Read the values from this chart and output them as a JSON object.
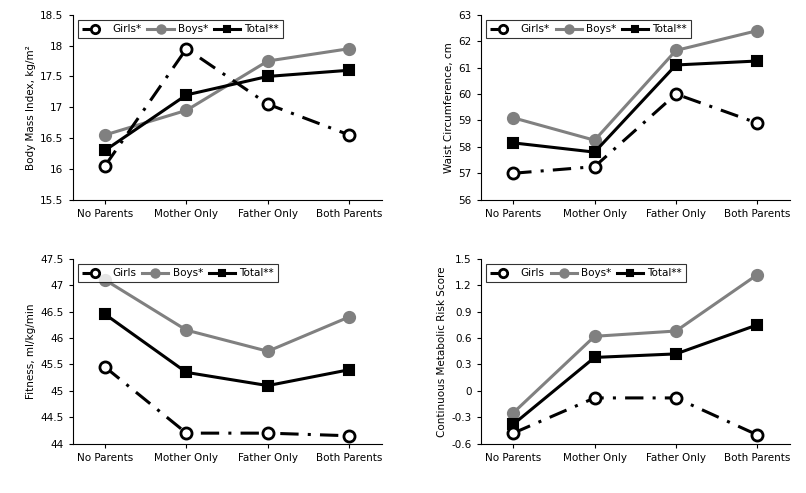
{
  "categories": [
    "No Parents",
    "Mother Only",
    "Father Only",
    "Both Parents"
  ],
  "bmi": {
    "girls": [
      16.05,
      17.95,
      17.05,
      16.55
    ],
    "boys": [
      16.55,
      16.95,
      17.75,
      17.95
    ],
    "total": [
      16.3,
      17.2,
      17.5,
      17.6
    ]
  },
  "waist": {
    "girls": [
      57.0,
      57.25,
      60.0,
      58.9
    ],
    "boys": [
      59.1,
      58.25,
      61.65,
      62.4
    ],
    "total": [
      58.15,
      57.8,
      61.1,
      61.25
    ]
  },
  "fitness": {
    "girls": [
      45.45,
      44.2,
      44.2,
      44.15
    ],
    "boys": [
      47.1,
      46.15,
      45.75,
      46.4
    ],
    "total": [
      46.45,
      45.35,
      45.1,
      45.4
    ]
  },
  "metabolic": {
    "girls": [
      -0.48,
      -0.08,
      -0.08,
      -0.5
    ],
    "boys": [
      -0.25,
      0.62,
      0.68,
      1.32
    ],
    "total": [
      -0.38,
      0.38,
      0.42,
      0.75
    ]
  },
  "bmi_ylim": [
    15.5,
    18.5
  ],
  "waist_ylim": [
    56,
    63
  ],
  "fitness_ylim": [
    44,
    47.5
  ],
  "metabolic_ylim": [
    -0.6,
    1.5
  ],
  "bmi_yticks": [
    15.5,
    16.0,
    16.5,
    17.0,
    17.5,
    18.0,
    18.5
  ],
  "waist_yticks": [
    56,
    57,
    58,
    59,
    60,
    61,
    62,
    63
  ],
  "fitness_yticks": [
    44,
    44.5,
    45.0,
    45.5,
    46.0,
    46.5,
    47.0,
    47.5
  ],
  "metabolic_yticks": [
    -0.6,
    -0.3,
    0.0,
    0.3,
    0.6,
    0.9,
    1.2,
    1.5
  ],
  "ylabel_bmi": "Body Mass Index, kg/m²",
  "ylabel_waist": "Waist Circumference, cm",
  "ylabel_fitness": "Fitness, ml/kg/min",
  "ylabel_metabolic": "Continuous Metabolic Risk Score",
  "legend_bmi": [
    "Girls*",
    "Boys*",
    "Total**"
  ],
  "legend_waist": [
    "Girls*",
    "Boys*",
    "Total**"
  ],
  "legend_fitness": [
    "Girls",
    "Boys*",
    "Total**"
  ],
  "legend_metabolic": [
    "Girls",
    "Boys*",
    "Total**"
  ],
  "girls_color": "#000000",
  "boys_color": "#808080",
  "total_color": "#000000",
  "line_width": 2.2,
  "marker_size": 8
}
